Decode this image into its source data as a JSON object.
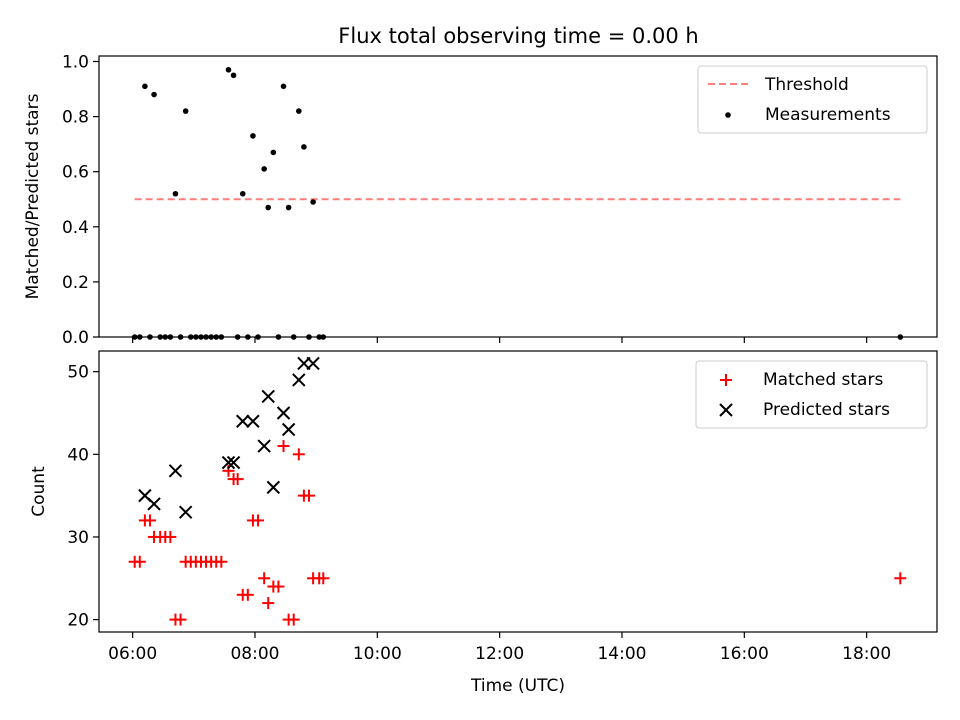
{
  "title": "Flux total observing time = 0.00 h",
  "chart_data": [
    {
      "type": "scatter",
      "ylabel": "Matched/Predicted stars",
      "xlabel": "",
      "xlim": [
        "05:27",
        "19:09"
      ],
      "ylim": [
        0,
        1.02
      ],
      "x_ticks": [
        "06:00",
        "08:00",
        "10:00",
        "12:00",
        "14:00",
        "16:00",
        "18:00"
      ],
      "y_ticks": [
        "0.0",
        "0.2",
        "0.4",
        "0.6",
        "0.8",
        "1.0"
      ],
      "legend_position": "upper right",
      "grid": false,
      "threshold": {
        "name": "Threshold",
        "value": 0.5,
        "x_range": [
          "06:02",
          "18:33"
        ],
        "color": "#ff7f7f",
        "style": "dashed"
      },
      "series": [
        {
          "name": "Measurements",
          "marker": "dot",
          "color": "#000000",
          "points": [
            {
              "x": "06:12",
              "y": 0.91
            },
            {
              "x": "06:21",
              "y": 0.88
            },
            {
              "x": "06:42",
              "y": 0.52
            },
            {
              "x": "06:52",
              "y": 0.82
            },
            {
              "x": "07:34",
              "y": 0.97
            },
            {
              "x": "07:39",
              "y": 0.95
            },
            {
              "x": "07:48",
              "y": 0.52
            },
            {
              "x": "07:58",
              "y": 0.73
            },
            {
              "x": "08:09",
              "y": 0.61
            },
            {
              "x": "08:13",
              "y": 0.47
            },
            {
              "x": "08:18",
              "y": 0.67
            },
            {
              "x": "08:28",
              "y": 0.91
            },
            {
              "x": "08:33",
              "y": 0.47
            },
            {
              "x": "08:43",
              "y": 0.82
            },
            {
              "x": "08:48",
              "y": 0.69
            },
            {
              "x": "08:57",
              "y": 0.49
            },
            {
              "x": "06:02",
              "y": 0
            },
            {
              "x": "06:07",
              "y": 0
            },
            {
              "x": "06:17",
              "y": 0
            },
            {
              "x": "06:27",
              "y": 0
            },
            {
              "x": "06:32",
              "y": 0
            },
            {
              "x": "06:37",
              "y": 0
            },
            {
              "x": "06:47",
              "y": 0
            },
            {
              "x": "06:57",
              "y": 0
            },
            {
              "x": "07:02",
              "y": 0
            },
            {
              "x": "07:07",
              "y": 0
            },
            {
              "x": "07:12",
              "y": 0
            },
            {
              "x": "07:17",
              "y": 0
            },
            {
              "x": "07:22",
              "y": 0
            },
            {
              "x": "07:27",
              "y": 0
            },
            {
              "x": "07:43",
              "y": 0
            },
            {
              "x": "07:53",
              "y": 0
            },
            {
              "x": "08:03",
              "y": 0
            },
            {
              "x": "08:23",
              "y": 0
            },
            {
              "x": "08:38",
              "y": 0
            },
            {
              "x": "08:53",
              "y": 0
            },
            {
              "x": "09:03",
              "y": 0
            },
            {
              "x": "09:07",
              "y": 0
            },
            {
              "x": "18:33",
              "y": 0
            }
          ]
        }
      ]
    },
    {
      "type": "scatter",
      "xlabel": "Time (UTC)",
      "ylabel": "Count",
      "xlim": [
        "05:27",
        "19:09"
      ],
      "ylim": [
        18.5,
        52.5
      ],
      "x_ticks": [
        "06:00",
        "08:00",
        "10:00",
        "12:00",
        "14:00",
        "16:00",
        "18:00"
      ],
      "y_ticks": [
        "20",
        "30",
        "40",
        "50"
      ],
      "legend_position": "upper right",
      "grid": false,
      "series": [
        {
          "name": "Matched stars",
          "marker": "plus",
          "color": "#ff0000",
          "points": [
            {
              "x": "06:02",
              "y": 27
            },
            {
              "x": "06:07",
              "y": 27
            },
            {
              "x": "06:12",
              "y": 32
            },
            {
              "x": "06:17",
              "y": 32
            },
            {
              "x": "06:21",
              "y": 30
            },
            {
              "x": "06:27",
              "y": 30
            },
            {
              "x": "06:32",
              "y": 30
            },
            {
              "x": "06:37",
              "y": 30
            },
            {
              "x": "06:42",
              "y": 20
            },
            {
              "x": "06:47",
              "y": 20
            },
            {
              "x": "06:52",
              "y": 27
            },
            {
              "x": "06:57",
              "y": 27
            },
            {
              "x": "07:02",
              "y": 27
            },
            {
              "x": "07:07",
              "y": 27
            },
            {
              "x": "07:12",
              "y": 27
            },
            {
              "x": "07:17",
              "y": 27
            },
            {
              "x": "07:22",
              "y": 27
            },
            {
              "x": "07:27",
              "y": 27
            },
            {
              "x": "07:34",
              "y": 38
            },
            {
              "x": "07:39",
              "y": 37
            },
            {
              "x": "07:43",
              "y": 37
            },
            {
              "x": "07:48",
              "y": 23
            },
            {
              "x": "07:53",
              "y": 23
            },
            {
              "x": "07:58",
              "y": 32
            },
            {
              "x": "08:03",
              "y": 32
            },
            {
              "x": "08:09",
              "y": 25
            },
            {
              "x": "08:13",
              "y": 22
            },
            {
              "x": "08:18",
              "y": 24
            },
            {
              "x": "08:23",
              "y": 24
            },
            {
              "x": "08:28",
              "y": 41
            },
            {
              "x": "08:33",
              "y": 20
            },
            {
              "x": "08:38",
              "y": 20
            },
            {
              "x": "08:43",
              "y": 40
            },
            {
              "x": "08:48",
              "y": 35
            },
            {
              "x": "08:53",
              "y": 35
            },
            {
              "x": "08:57",
              "y": 25
            },
            {
              "x": "09:03",
              "y": 25
            },
            {
              "x": "09:07",
              "y": 25
            },
            {
              "x": "18:33",
              "y": 25
            }
          ]
        },
        {
          "name": "Predicted stars",
          "marker": "x",
          "color": "#000000",
          "points": [
            {
              "x": "06:12",
              "y": 35
            },
            {
              "x": "06:21",
              "y": 34
            },
            {
              "x": "06:42",
              "y": 38
            },
            {
              "x": "06:52",
              "y": 33
            },
            {
              "x": "07:34",
              "y": 39
            },
            {
              "x": "07:39",
              "y": 39
            },
            {
              "x": "07:48",
              "y": 44
            },
            {
              "x": "07:58",
              "y": 44
            },
            {
              "x": "08:09",
              "y": 41
            },
            {
              "x": "08:13",
              "y": 47
            },
            {
              "x": "08:18",
              "y": 36
            },
            {
              "x": "08:28",
              "y": 45
            },
            {
              "x": "08:33",
              "y": 43
            },
            {
              "x": "08:43",
              "y": 49
            },
            {
              "x": "08:48",
              "y": 51
            },
            {
              "x": "08:57",
              "y": 51
            }
          ]
        }
      ]
    }
  ]
}
